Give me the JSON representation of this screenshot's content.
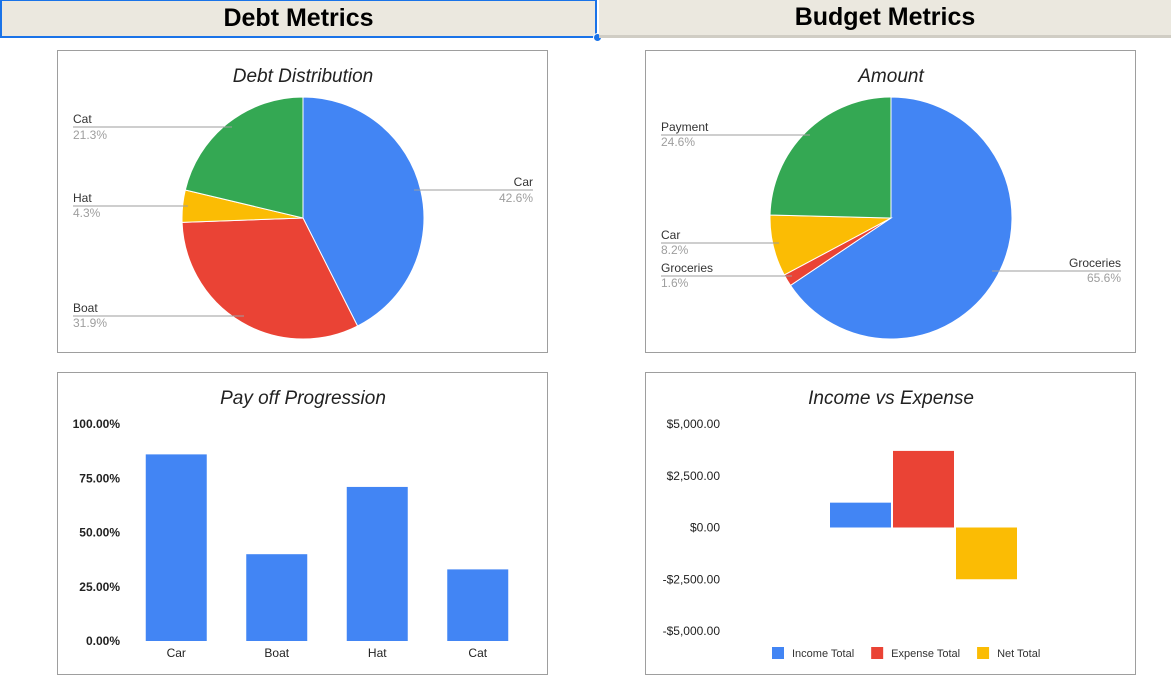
{
  "headers": {
    "debt": "Debt Metrics",
    "budget": "Budget Metrics"
  },
  "chart_data": [
    {
      "id": "debt_distribution",
      "type": "pie",
      "title": "Debt Distribution",
      "slices": [
        {
          "label": "Car",
          "value": 42.6,
          "pct": "42.6%",
          "color": "#4285f4"
        },
        {
          "label": "Boat",
          "value": 31.9,
          "pct": "31.9%",
          "color": "#ea4335"
        },
        {
          "label": "Hat",
          "value": 4.3,
          "pct": "4.3%",
          "color": "#fbbc04"
        },
        {
          "label": "Cat",
          "value": 21.3,
          "pct": "21.3%",
          "color": "#34a853"
        }
      ]
    },
    {
      "id": "amount",
      "type": "pie",
      "title": "Amount",
      "slices": [
        {
          "label": "Groceries",
          "value": 65.6,
          "pct": "65.6%",
          "color": "#4285f4"
        },
        {
          "label": "Groceries",
          "value": 1.6,
          "pct": "1.6%",
          "color": "#ea4335"
        },
        {
          "label": "Car",
          "value": 8.2,
          "pct": "8.2%",
          "color": "#fbbc04"
        },
        {
          "label": "Payment",
          "value": 24.6,
          "pct": "24.6%",
          "color": "#34a853"
        }
      ]
    },
    {
      "id": "payoff_progression",
      "type": "bar",
      "title": "Pay off Progression",
      "categories": [
        "Car",
        "Boat",
        "Hat",
        "Cat"
      ],
      "values": [
        86,
        40,
        71,
        33
      ],
      "ylim": [
        0,
        100
      ],
      "yticks": [
        0,
        25,
        50,
        75,
        100
      ],
      "ytick_labels": [
        "0.00%",
        "25.00%",
        "50.00%",
        "75.00%",
        "100.00%"
      ],
      "color": "#4285f4"
    },
    {
      "id": "income_vs_expense",
      "type": "bar",
      "title": "Income vs Expense",
      "series": [
        {
          "name": "Income Total",
          "value": 1200,
          "color": "#4285f4"
        },
        {
          "name": "Expense Total",
          "value": 3700,
          "color": "#ea4335"
        },
        {
          "name": "Net Total",
          "value": -2500,
          "color": "#fbbc04"
        }
      ],
      "ylim": [
        -5000,
        5000
      ],
      "yticks": [
        -5000,
        -2500,
        0,
        2500,
        5000
      ],
      "ytick_labels": [
        "-$5,000.00",
        "-$2,500.00",
        "$0.00",
        "$2,500.00",
        "$5,000.00"
      ],
      "legend_position": "bottom"
    }
  ]
}
